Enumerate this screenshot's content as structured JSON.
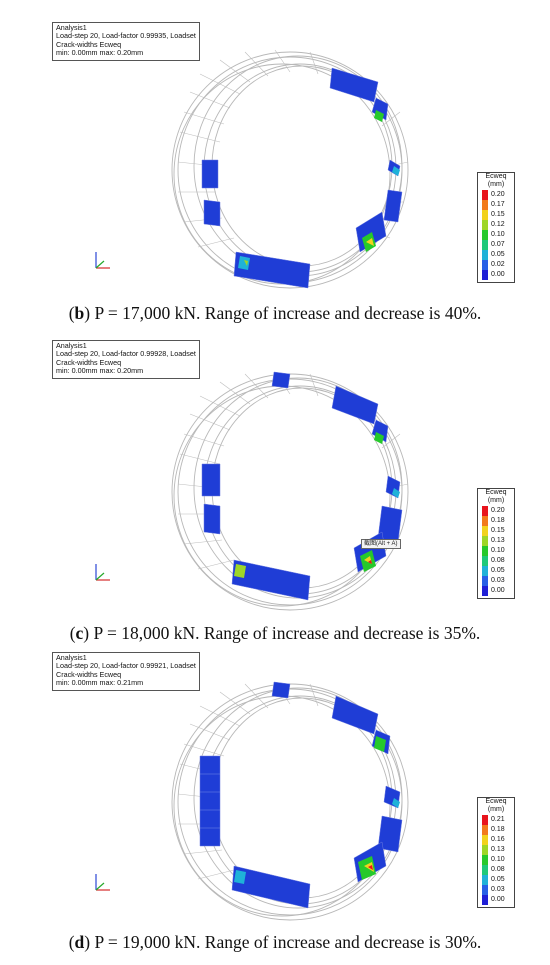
{
  "panels": [
    {
      "info": [
        "Analysis1",
        "Load-step 20, Load-factor 0.99935, Loadset",
        "Crack-widths Ecweq",
        "min: 0.00mm max: 0.20mm"
      ],
      "legend": {
        "title": [
          "Ecweq",
          "(mm)"
        ],
        "values": [
          "0.20",
          "0.17",
          "0.15",
          "0.12",
          "0.10",
          "0.07",
          "0.05",
          "0.02",
          "0.00"
        ]
      },
      "caption": {
        "letter": "b",
        "text": " P = 17,000 kN. Range of increase and decrease is 40%."
      }
    },
    {
      "info": [
        "Analysis1",
        "Load-step 20, Load-factor 0.99928, Loadset",
        "Crack-widths Ecweq",
        "min: 0.00mm max: 0.20mm"
      ],
      "legend": {
        "title": [
          "Ecweq",
          "(mm)"
        ],
        "values": [
          "0.20",
          "0.18",
          "0.15",
          "0.13",
          "0.10",
          "0.08",
          "0.05",
          "0.03",
          "0.00"
        ]
      },
      "tooltip": "截图(Alt + A)",
      "caption": {
        "letter": "c",
        "text": " P = 18,000 kN. Range of increase and decrease is 35%."
      }
    },
    {
      "info": [
        "Analysis1",
        "Load-step 20, Load-factor 0.99921, Loadset",
        "Crack-widths Ecweq",
        "min: 0.00mm max: 0.21mm"
      ],
      "legend": {
        "title": [
          "Ecweq",
          "(mm)"
        ],
        "values": [
          "0.21",
          "0.18",
          "0.16",
          "0.13",
          "0.10",
          "0.08",
          "0.05",
          "0.03",
          "0.00"
        ]
      },
      "caption": {
        "letter": "d",
        "text": " P = 19,000 kN. Range of increase and decrease is 30%."
      }
    }
  ],
  "colors": {
    "mesh": "#b8b8b8",
    "crack_blue": "#1f3dd6",
    "legend_scale": [
      "#e8141c",
      "#f27a1a",
      "#f2d21c",
      "#9ed627",
      "#26c92b",
      "#1ec97a",
      "#1fb2d8",
      "#2760e6",
      "#1f1fd6"
    ]
  }
}
